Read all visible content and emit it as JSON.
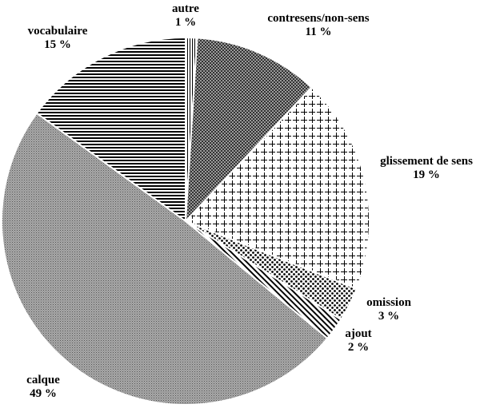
{
  "chart_data": {
    "type": "pie",
    "title": "",
    "slices": [
      {
        "label": "autre",
        "value_label": "1 %",
        "value": 1,
        "pattern": "hatch-vertical"
      },
      {
        "label": "contresens/non-sens",
        "value_label": "11 %",
        "value": 11,
        "pattern": "dense-dots-dark"
      },
      {
        "label": "glissement de sens",
        "value_label": "19 %",
        "value": 19,
        "pattern": "grid-dashed"
      },
      {
        "label": "omission",
        "value_label": "3 %",
        "value": 3,
        "pattern": "large-dots"
      },
      {
        "label": "ajout",
        "value_label": "2 %",
        "value": 2,
        "pattern": "diagonal-stripes"
      },
      {
        "label": "calque",
        "value_label": "49 %",
        "value": 49,
        "pattern": "fine-dots-gray"
      },
      {
        "label": "vocabulaire",
        "value_label": "15 %",
        "value": 15,
        "pattern": "horizontal-stripes"
      }
    ],
    "start": "12 o'clock",
    "direction": "clockwise",
    "legend": "none, labels placed outside slices"
  }
}
